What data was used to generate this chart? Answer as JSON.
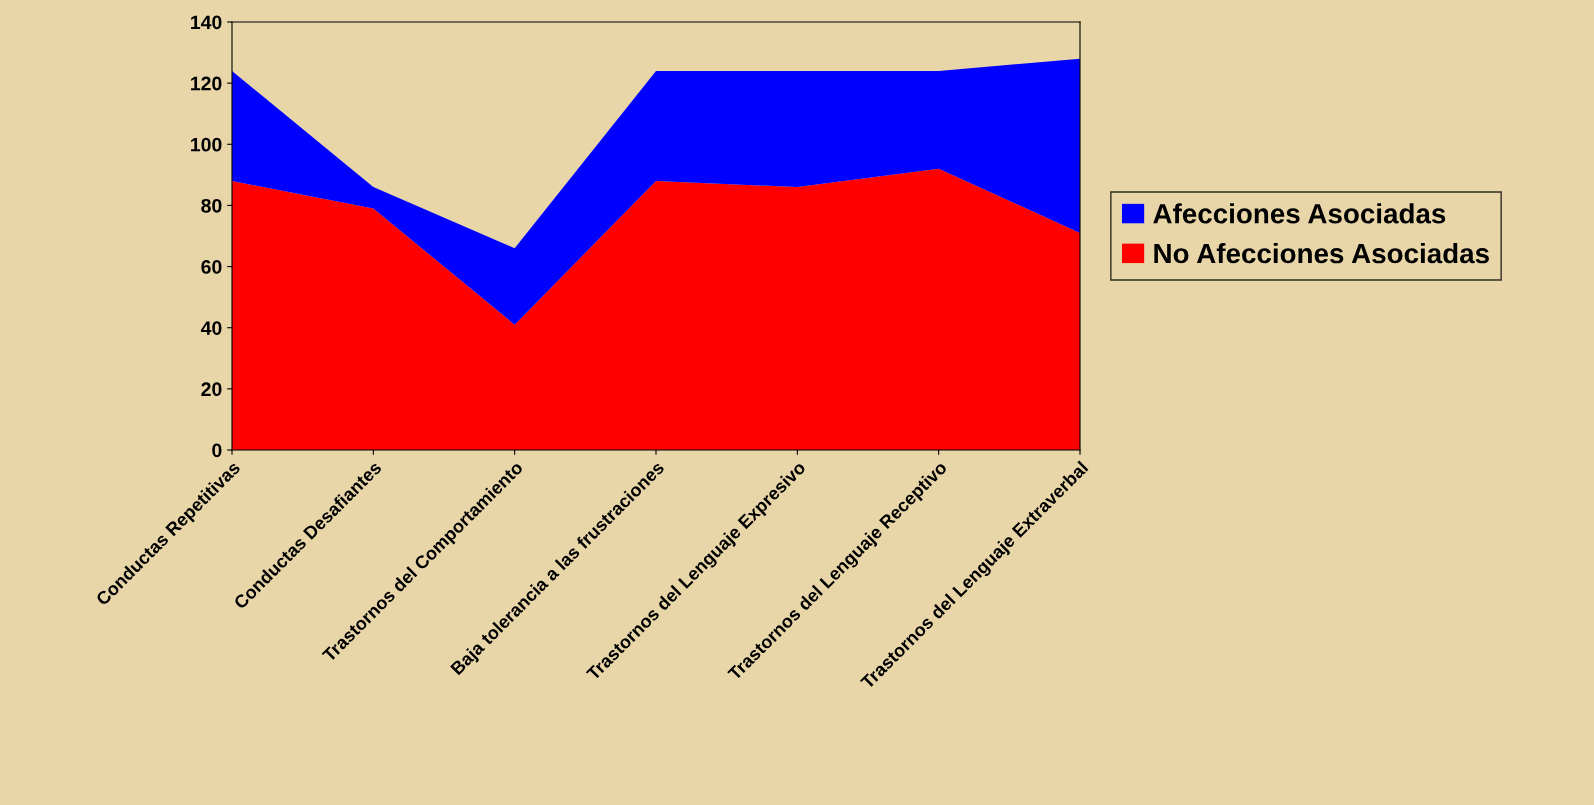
{
  "chart_data": {
    "type": "area",
    "stacked": true,
    "categories": [
      "Conductas Repetitivas",
      "Conductas Desafiantes",
      "Trastornos del Comportamiento",
      "Baja tolerancia a las frustraciones",
      "Trastornos del Lenguaje Expresivo",
      "Trastornos del Lenguaje Receptivo",
      "Trastornos del Lenguaje Extraverbal"
    ],
    "series": [
      {
        "name": "No Afecciones Asociadas",
        "color": "#ff0000",
        "values": [
          88,
          79,
          41,
          88,
          86,
          92,
          71
        ]
      },
      {
        "name": "Afecciones Asociadas",
        "color": "#0000ff",
        "values": [
          36,
          7,
          25,
          36,
          38,
          32,
          57
        ]
      }
    ],
    "ylim": [
      0,
      140
    ],
    "yticks": [
      0,
      20,
      40,
      60,
      80,
      100,
      120,
      140
    ],
    "grid": false,
    "legend": "right"
  }
}
